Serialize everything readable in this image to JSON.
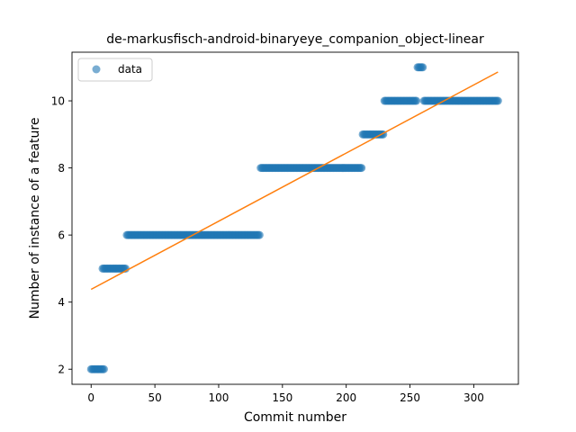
{
  "chart_data": {
    "type": "scatter",
    "title": "de-markusfisch-android-binaryeye_companion_object-linear",
    "xlabel": "Commit number",
    "ylabel": "Number of instance of a feature",
    "xlim": [
      -15,
      335
    ],
    "ylim": [
      1.55,
      11.45
    ],
    "xticks": [
      0,
      50,
      100,
      150,
      200,
      250,
      300
    ],
    "yticks": [
      2,
      4,
      6,
      8,
      10
    ],
    "legend": {
      "position": "top-left",
      "entries": [
        "data"
      ]
    },
    "colors": {
      "data": "#1f77b4",
      "fit": "#ff7f0e"
    },
    "grid": false,
    "series": [
      {
        "name": "data",
        "segments": [
          {
            "x_start": 0,
            "x_end": 10,
            "y": 2
          },
          {
            "x_start": 9,
            "x_end": 27,
            "y": 5
          },
          {
            "x_start": 28,
            "x_end": 132,
            "y": 6
          },
          {
            "x_start": 133,
            "x_end": 212,
            "y": 8
          },
          {
            "x_start": 213,
            "x_end": 229,
            "y": 9
          },
          {
            "x_start": 230,
            "x_end": 255,
            "y": 10
          },
          {
            "x_start": 256,
            "x_end": 260,
            "y": 11
          },
          {
            "x_start": 261,
            "x_end": 319,
            "y": 10
          }
        ]
      }
    ],
    "fit_line": {
      "x": [
        0,
        319
      ],
      "y": [
        4.38,
        10.86
      ]
    }
  }
}
